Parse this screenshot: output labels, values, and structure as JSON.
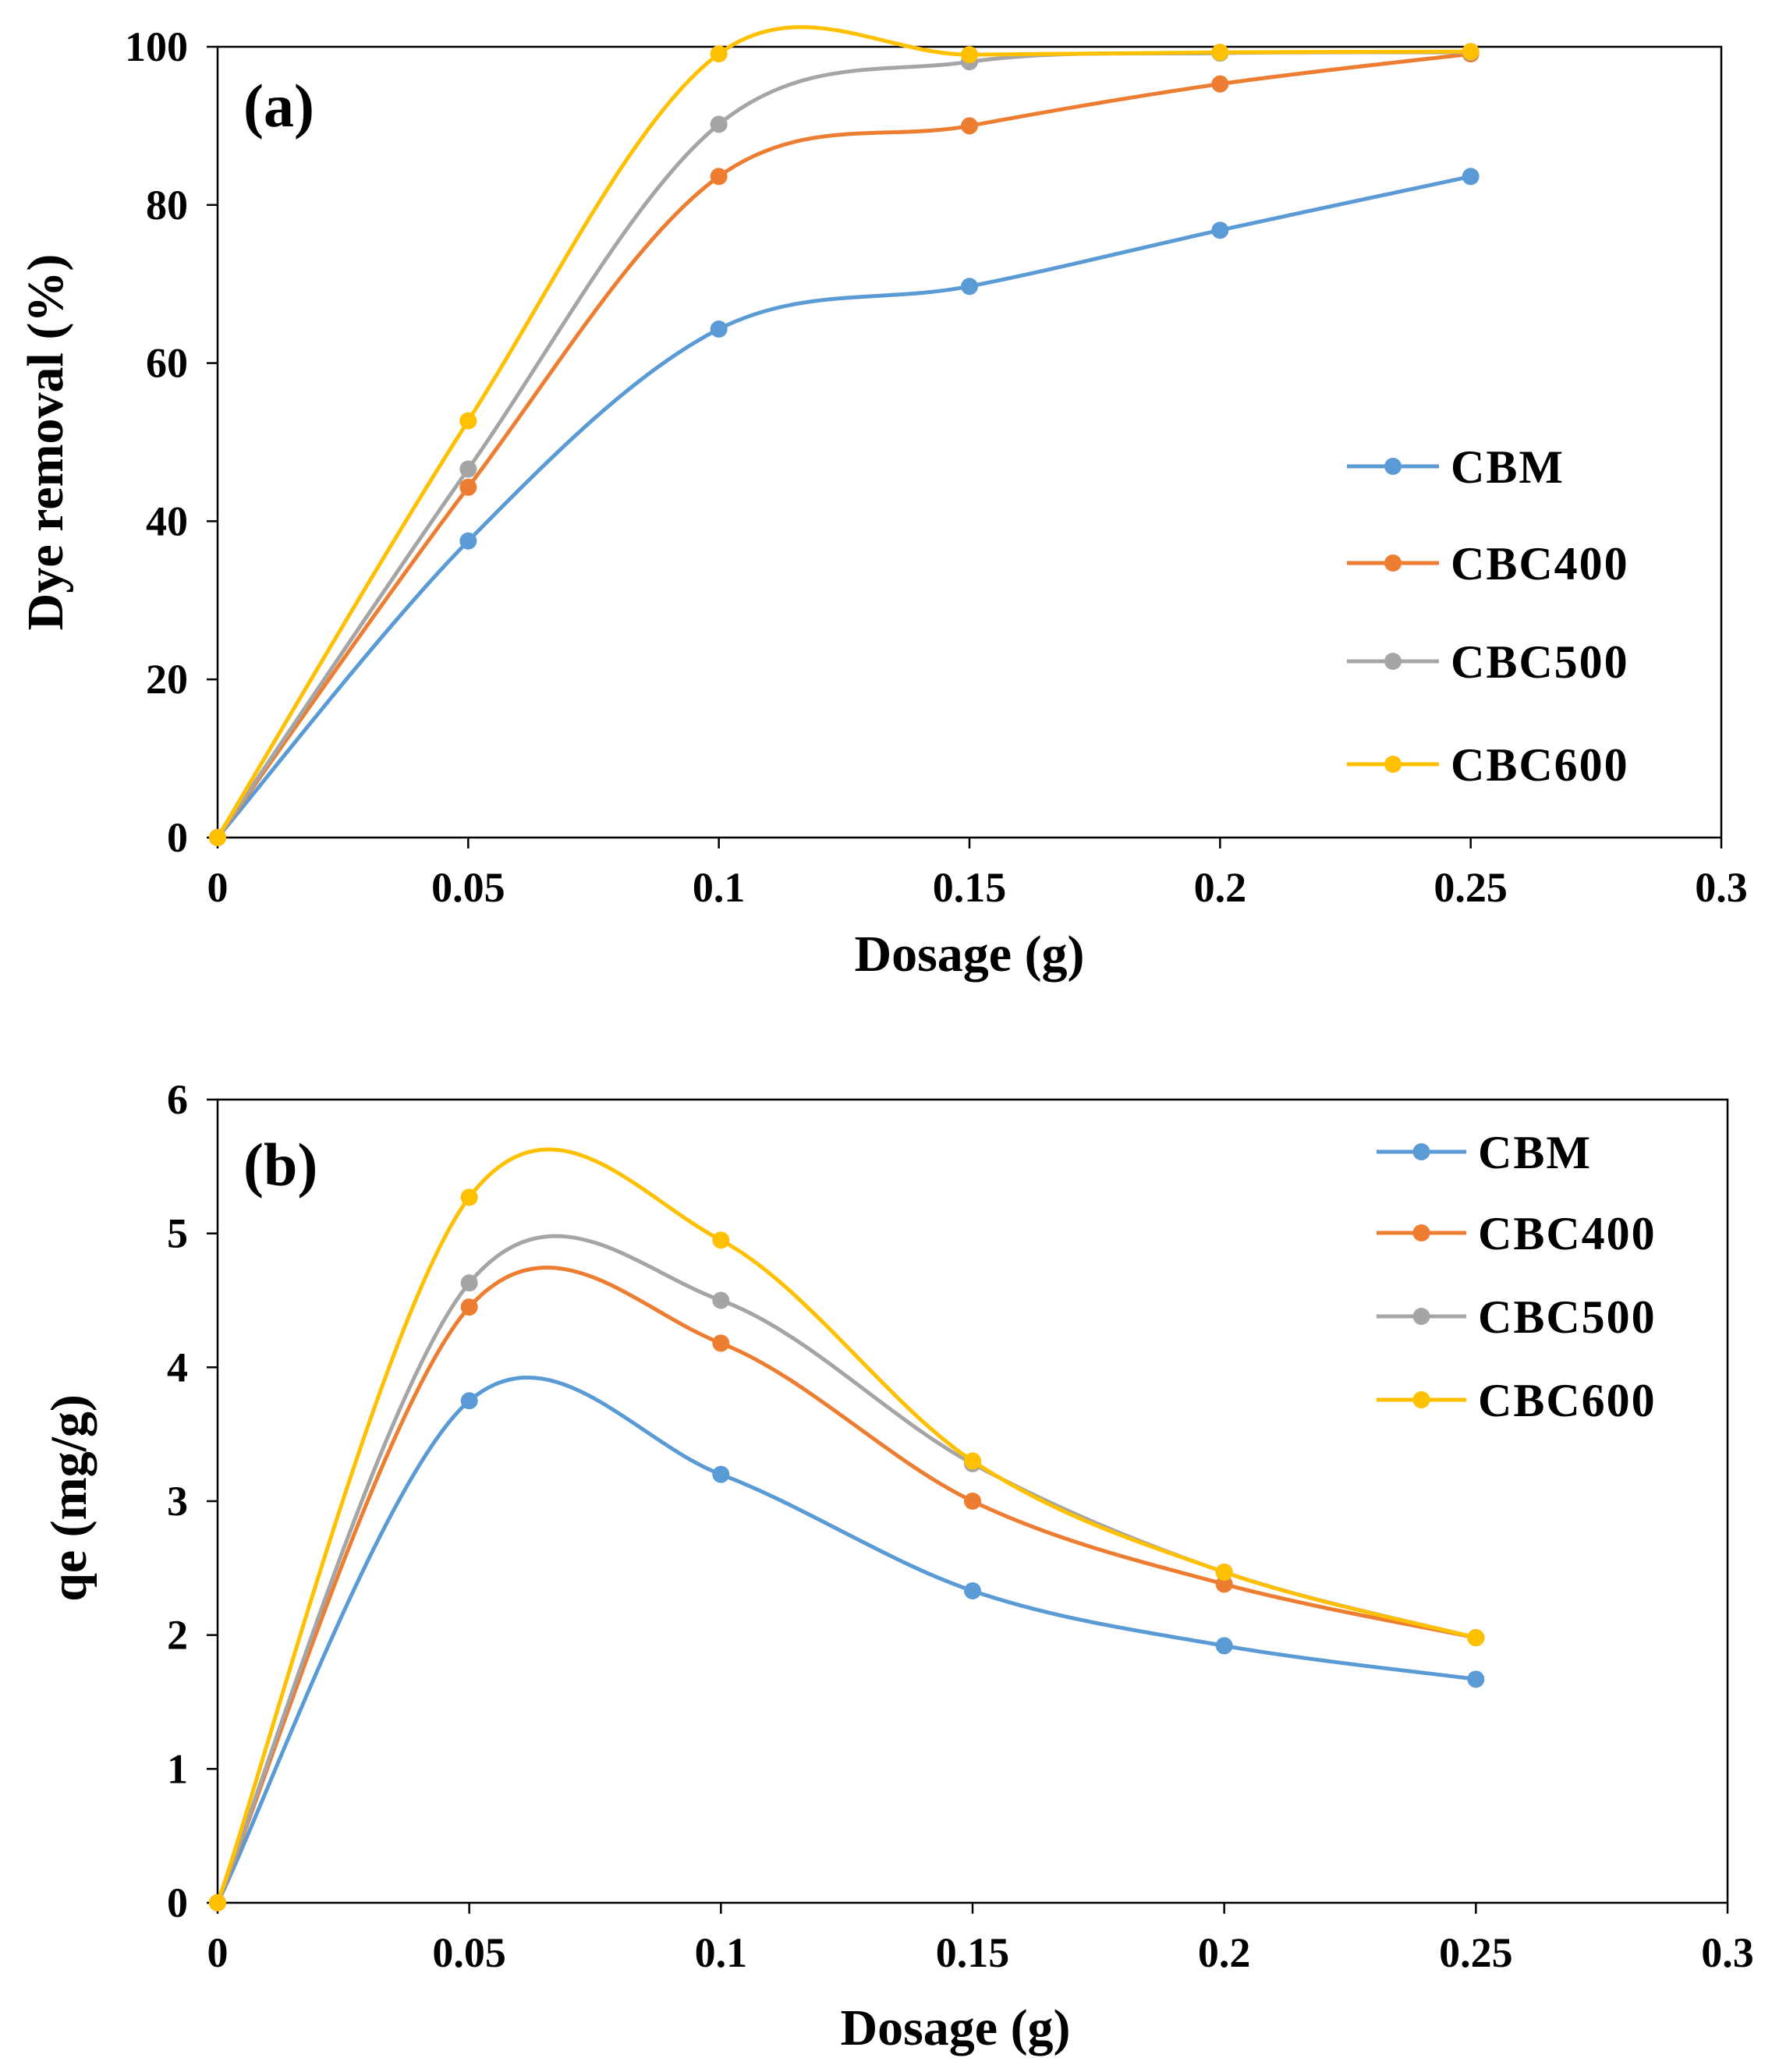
{
  "chart_data": [
    {
      "type": "line",
      "panel_label": "(a)",
      "xlabel": "Dosage (g)",
      "ylabel": "Dye removal (%)",
      "xlim": [
        0,
        0.3
      ],
      "ylim": [
        0,
        100
      ],
      "x_ticks": [
        "0",
        "0.05",
        "0.1",
        "0.15",
        "0.2",
        "0.25",
        "0.3"
      ],
      "y_ticks": [
        "0",
        "20",
        "40",
        "60",
        "80",
        "100"
      ],
      "x": [
        0,
        0.05,
        0.1,
        0.15,
        0.2,
        0.25
      ],
      "legend_position": "right-middle",
      "series": [
        {
          "name": "CBM",
          "color": "#5B9BD5",
          "values": [
            0,
            37.5,
            64.3,
            69.7,
            76.8,
            83.6
          ]
        },
        {
          "name": "CBC400",
          "color": "#ED7D31",
          "values": [
            0,
            44.3,
            83.6,
            90,
            95.3,
            99.1
          ]
        },
        {
          "name": "CBC500",
          "color": "#A5A5A5",
          "values": [
            0,
            46.6,
            90.2,
            98.1,
            99.2,
            99.3
          ]
        },
        {
          "name": "CBC600",
          "color": "#FFC000",
          "values": [
            0,
            52.7,
            99.1,
            99.0,
            99.3,
            99.4
          ]
        }
      ]
    },
    {
      "type": "line",
      "panel_label": "(b)",
      "xlabel": "Dosage (g)",
      "ylabel": "qe (mg/g)",
      "xlim": [
        0,
        0.3
      ],
      "ylim": [
        0,
        6
      ],
      "x_ticks": [
        "0",
        "0.05",
        "0.1",
        "0.15",
        "0.2",
        "0.25",
        "0.3"
      ],
      "y_ticks": [
        "0",
        "1",
        "2",
        "3",
        "4",
        "5",
        "6"
      ],
      "x": [
        0,
        0.05,
        0.1,
        0.15,
        0.2,
        0.25
      ],
      "legend_position": "top-right",
      "series": [
        {
          "name": "CBM",
          "color": "#5B9BD5",
          "values": [
            0,
            3.75,
            3.2,
            2.33,
            1.92,
            1.67
          ]
        },
        {
          "name": "CBC400",
          "color": "#ED7D31",
          "values": [
            0,
            4.45,
            4.18,
            3.0,
            2.38,
            1.98
          ]
        },
        {
          "name": "CBC500",
          "color": "#A5A5A5",
          "values": [
            0,
            4.63,
            4.5,
            3.28,
            2.47,
            1.98
          ]
        },
        {
          "name": "CBC600",
          "color": "#FFC000",
          "values": [
            0,
            5.27,
            4.95,
            3.3,
            2.47,
            1.98
          ]
        }
      ]
    }
  ]
}
